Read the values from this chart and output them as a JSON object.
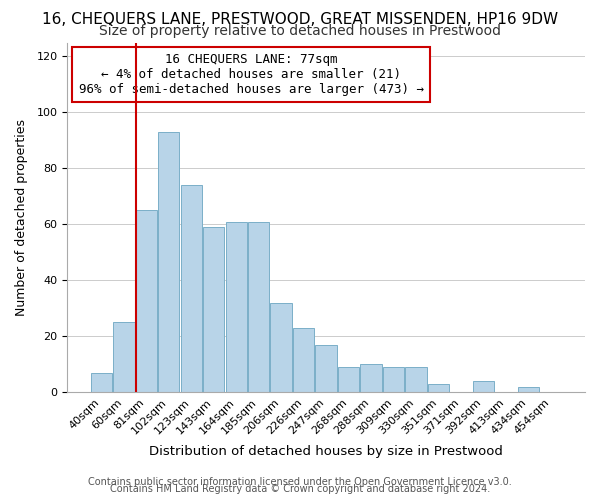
{
  "title1": "16, CHEQUERS LANE, PRESTWOOD, GREAT MISSENDEN, HP16 9DW",
  "title2": "Size of property relative to detached houses in Prestwood",
  "xlabel": "Distribution of detached houses by size in Prestwood",
  "ylabel": "Number of detached properties",
  "bar_labels": [
    "40sqm",
    "60sqm",
    "81sqm",
    "102sqm",
    "123sqm",
    "143sqm",
    "164sqm",
    "185sqm",
    "206sqm",
    "226sqm",
    "247sqm",
    "268sqm",
    "288sqm",
    "309sqm",
    "330sqm",
    "351sqm",
    "371sqm",
    "392sqm",
    "413sqm",
    "434sqm",
    "454sqm"
  ],
  "bar_values": [
    7,
    25,
    65,
    93,
    74,
    59,
    61,
    61,
    32,
    23,
    17,
    9,
    10,
    9,
    9,
    3,
    0,
    4,
    0,
    2,
    0
  ],
  "bar_color": "#b8d4e8",
  "bar_edge_color": "#7aafc8",
  "vline_x": 2,
  "vline_color": "#cc0000",
  "annotation_text": "16 CHEQUERS LANE: 77sqm\n← 4% of detached houses are smaller (21)\n96% of semi-detached houses are larger (473) →",
  "annotation_box_color": "#ffffff",
  "annotation_box_edge": "#cc0000",
  "ylim": [
    0,
    125
  ],
  "yticks": [
    0,
    20,
    40,
    60,
    80,
    100,
    120
  ],
  "footer1": "Contains HM Land Registry data © Crown copyright and database right 2024.",
  "footer2": "Contains public sector information licensed under the Open Government Licence v3.0.",
  "title1_fontsize": 11,
  "title2_fontsize": 10,
  "xlabel_fontsize": 9.5,
  "ylabel_fontsize": 9,
  "tick_fontsize": 8,
  "annotation_fontsize": 9,
  "footer_fontsize": 7
}
